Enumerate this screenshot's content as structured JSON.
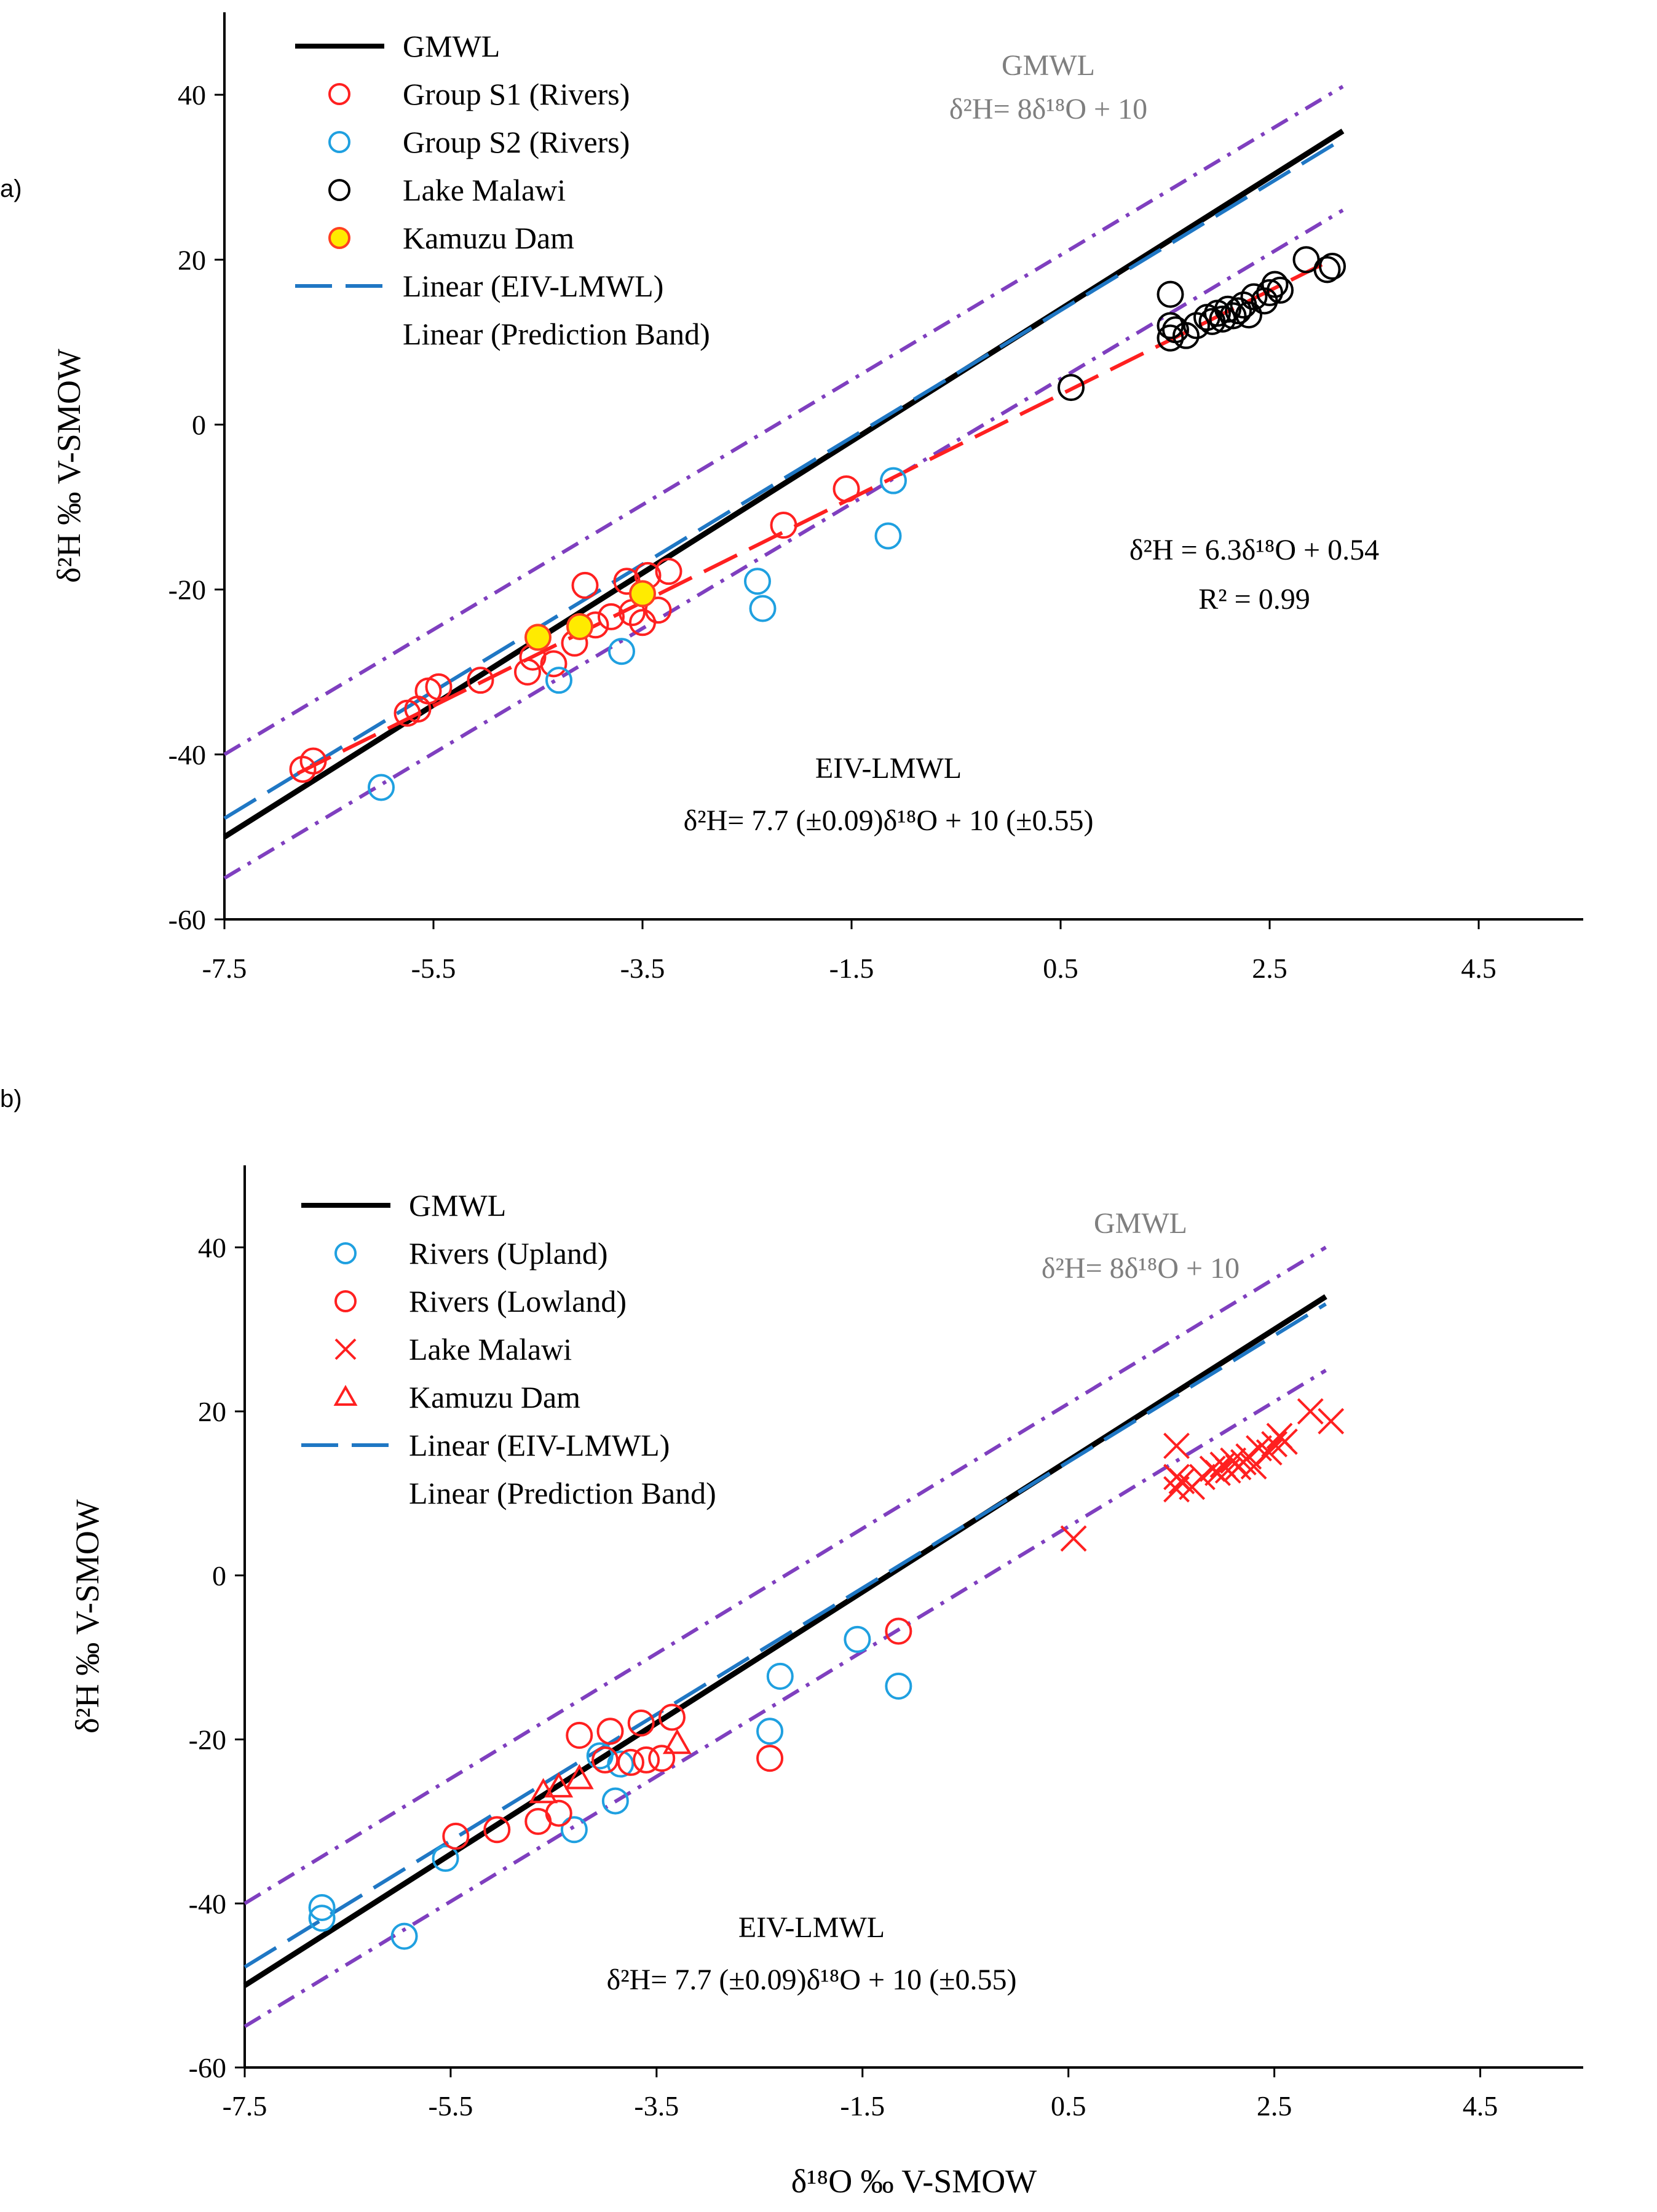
{
  "chart_data": [
    {
      "panel": "a)",
      "type": "scatter",
      "xlabel": "",
      "ylabel": "δ²H ‰ V-SMOW",
      "xlim": [
        -7.5,
        5.5
      ],
      "ylim": [
        -60,
        50
      ],
      "x_ticks": [
        "-7.5",
        "-5.5",
        "-3.5",
        "-1.5",
        "0.5",
        "2.5",
        "4.5"
      ],
      "y_ticks": [
        "-60",
        "-40",
        "-20",
        "0",
        "20",
        "40"
      ],
      "legend": [
        "GMWL",
        "Group S1 (Rivers)",
        "Group S2 (Rivers)",
        "Lake Malawi",
        "Kamuzu Dam",
        "Linear  (EIV-LMWL)",
        "Linear  (Prediction Band)"
      ],
      "annotations": {
        "gmwl_title": "GMWL",
        "gmwl_eq": "δ²H= 8δ¹⁸O + 10",
        "reg_eq": "δ²H = 6.3δ¹⁸O + 0.54",
        "reg_r2": "R² = 0.99",
        "eiv_title": "EIV-LMWL",
        "eiv_eq": "δ²H= 7.7 (±0.09)δ¹⁸O + 10 (±0.55)"
      },
      "lines": [
        {
          "name": "GMWL",
          "style": "solid",
          "color": "#000000",
          "x": [
            -7.5,
            3.2
          ],
          "y": [
            -50,
            35.6
          ]
        },
        {
          "name": "Linear  (EIV-LMWL)",
          "style": "dashed",
          "color": "#1f77c4",
          "x": [
            -7.5,
            3.2
          ],
          "y": [
            -47.75,
            34.64
          ]
        },
        {
          "name": "Linear  (Prediction Band) upper",
          "style": "dashdot",
          "color": "#7f3fbf",
          "x": [
            -7.5,
            3.2
          ],
          "y": [
            -40,
            41
          ]
        },
        {
          "name": "Linear  (Prediction Band) lower",
          "style": "dashdot",
          "color": "#7f3fbf",
          "x": [
            -7.5,
            3.2
          ],
          "y": [
            -55,
            26
          ]
        },
        {
          "name": "Evaporation line",
          "style": "dashed",
          "color": "#ff2020",
          "x": [
            -6.8,
            3.0
          ],
          "y": [
            -42.3,
            19.4
          ]
        }
      ],
      "series": [
        {
          "name": "Group S1 (Rivers)",
          "marker": "circle",
          "color": "#ff2020",
          "fill": "none",
          "points": [
            [
              -6.75,
              -41.8
            ],
            [
              -6.65,
              -40.8
            ],
            [
              -5.75,
              -35
            ],
            [
              -5.65,
              -34.5
            ],
            [
              -5.55,
              -32.3
            ],
            [
              -5.45,
              -31.8
            ],
            [
              -5.05,
              -31
            ],
            [
              -4.6,
              -30
            ],
            [
              -4.55,
              -28.2
            ],
            [
              -4.35,
              -29
            ],
            [
              -4.15,
              -26.5
            ],
            [
              -4.05,
              -19.5
            ],
            [
              -3.95,
              -24.3
            ],
            [
              -3.8,
              -23.3
            ],
            [
              -3.65,
              -19
            ],
            [
              -3.6,
              -22.8
            ],
            [
              -3.5,
              -24
            ],
            [
              -3.45,
              -18.3
            ],
            [
              -3.35,
              -22.5
            ],
            [
              -3.25,
              -17.8
            ],
            [
              -2.15,
              -12.2
            ],
            [
              -1.55,
              -7.8
            ]
          ]
        },
        {
          "name": "Group S2 (Rivers)",
          "marker": "circle",
          "color": "#1fa0e0",
          "fill": "none",
          "points": [
            [
              -6.0,
              -44
            ],
            [
              -4.3,
              -31
            ],
            [
              -3.7,
              -27.5
            ],
            [
              -2.4,
              -19
            ],
            [
              -2.35,
              -22.3
            ],
            [
              -1.15,
              -13.5
            ],
            [
              -1.1,
              -6.8
            ]
          ]
        },
        {
          "name": "Lake Malawi",
          "marker": "circle",
          "color": "#000000",
          "fill": "none",
          "points": [
            [
              0.6,
              4.5
            ],
            [
              1.55,
              15.8
            ],
            [
              1.55,
              12
            ],
            [
              1.55,
              10.5
            ],
            [
              1.6,
              11.5
            ],
            [
              1.7,
              10.8
            ],
            [
              1.8,
              12
            ],
            [
              1.9,
              13
            ],
            [
              1.95,
              12.5
            ],
            [
              2.0,
              13.5
            ],
            [
              2.05,
              12.8
            ],
            [
              2.1,
              14
            ],
            [
              2.15,
              13.2
            ],
            [
              2.2,
              13.8
            ],
            [
              2.25,
              14.5
            ],
            [
              2.3,
              13.3
            ],
            [
              2.35,
              15.5
            ],
            [
              2.45,
              15
            ],
            [
              2.5,
              16
            ],
            [
              2.55,
              17
            ],
            [
              2.6,
              16.3
            ],
            [
              2.85,
              20
            ],
            [
              3.05,
              18.8
            ],
            [
              3.1,
              19.2
            ]
          ]
        },
        {
          "name": "Kamuzu Dam",
          "marker": "circle",
          "color": "#ff4020",
          "fill": "#ffeb00",
          "points": [
            [
              -4.5,
              -25.8
            ],
            [
              -4.1,
              -24.5
            ],
            [
              -3.5,
              -20.5
            ]
          ]
        }
      ]
    },
    {
      "panel": "b)",
      "type": "scatter",
      "xlabel": "δ¹⁸O ‰ V-SMOW",
      "ylabel": "δ²H ‰ V-SMOW",
      "xlim": [
        -7.5,
        5.5
      ],
      "ylim": [
        -60,
        50
      ],
      "x_ticks": [
        "-7.5",
        "-5.5",
        "-3.5",
        "-1.5",
        "0.5",
        "2.5",
        "4.5"
      ],
      "y_ticks": [
        "-60",
        "-40",
        "-20",
        "0",
        "20",
        "40"
      ],
      "legend": [
        "GMWL",
        "Rivers (Upland)",
        "Rivers (Lowland)",
        "Lake Malawi",
        "Kamuzu Dam",
        "Linear  (EIV-LMWL)",
        "Linear  (Prediction Band)"
      ],
      "annotations": {
        "gmwl_title": "GMWL",
        "gmwl_eq": "δ²H= 8δ¹⁸O + 10",
        "eiv_title": "EIV-LMWL",
        "eiv_eq": "δ²H= 7.7 (±0.09)δ¹⁸O + 10 (±0.55)"
      },
      "lines": [
        {
          "name": "GMWL",
          "style": "solid",
          "color": "#000000",
          "x": [
            -7.5,
            3.0
          ],
          "y": [
            -50,
            34
          ]
        },
        {
          "name": "Linear  (EIV-LMWL)",
          "style": "dashed",
          "color": "#1f77c4",
          "x": [
            -7.5,
            3.0
          ],
          "y": [
            -47.75,
            33.1
          ]
        },
        {
          "name": "Linear  (Prediction Band) upper",
          "style": "dashdot",
          "color": "#7f3fbf",
          "x": [
            -7.5,
            3.0
          ],
          "y": [
            -40,
            40
          ]
        },
        {
          "name": "Linear  (Prediction Band) lower",
          "style": "dashdot",
          "color": "#7f3fbf",
          "x": [
            -7.5,
            3.0
          ],
          "y": [
            -55,
            25
          ]
        }
      ],
      "series": [
        {
          "name": "Rivers (Upland)",
          "marker": "circle",
          "color": "#1fa0e0",
          "fill": "none",
          "points": [
            [
              -6.75,
              -40.5
            ],
            [
              -6.75,
              -41.8
            ],
            [
              -5.95,
              -44
            ],
            [
              -5.55,
              -34.5
            ],
            [
              -4.3,
              -31
            ],
            [
              -4.05,
              -22
            ],
            [
              -3.9,
              -27.5
            ],
            [
              -3.85,
              -23
            ],
            [
              -2.4,
              -19
            ],
            [
              -2.3,
              -12.3
            ],
            [
              -1.55,
              -7.8
            ],
            [
              -1.15,
              -13.5
            ]
          ]
        },
        {
          "name": "Rivers (Lowland)",
          "marker": "circle",
          "color": "#ff2020",
          "fill": "none",
          "points": [
            [
              -5.45,
              -31.8
            ],
            [
              -5.05,
              -31
            ],
            [
              -4.65,
              -30
            ],
            [
              -4.45,
              -29
            ],
            [
              -4.25,
              -19.5
            ],
            [
              -4.0,
              -22.5
            ],
            [
              -3.95,
              -19
            ],
            [
              -3.75,
              -22.8
            ],
            [
              -3.65,
              -18
            ],
            [
              -3.6,
              -22.5
            ],
            [
              -3.45,
              -22.3
            ],
            [
              -3.35,
              -17.3
            ],
            [
              -2.4,
              -22.3
            ],
            [
              -1.15,
              -6.8
            ]
          ]
        },
        {
          "name": "Lake Malawi",
          "marker": "x",
          "color": "#ff2020",
          "fill": "none",
          "points": [
            [
              0.55,
              4.5
            ],
            [
              1.55,
              15.8
            ],
            [
              1.55,
              12
            ],
            [
              1.55,
              10.5
            ],
            [
              1.6,
              11.5
            ],
            [
              1.7,
              10.8
            ],
            [
              1.8,
              12
            ],
            [
              1.9,
              13
            ],
            [
              1.95,
              12.5
            ],
            [
              2.0,
              13.5
            ],
            [
              2.05,
              12.8
            ],
            [
              2.1,
              14
            ],
            [
              2.15,
              13.2
            ],
            [
              2.2,
              13.8
            ],
            [
              2.25,
              14.5
            ],
            [
              2.3,
              13.3
            ],
            [
              2.35,
              15.5
            ],
            [
              2.45,
              15
            ],
            [
              2.5,
              16
            ],
            [
              2.55,
              17
            ],
            [
              2.6,
              16.3
            ],
            [
              2.85,
              20
            ],
            [
              3.05,
              18.8
            ]
          ]
        },
        {
          "name": "Kamuzu Dam",
          "marker": "triangle",
          "color": "#ff2020",
          "fill": "none",
          "points": [
            [
              -4.6,
              -26.5
            ],
            [
              -4.45,
              -25.8
            ],
            [
              -4.25,
              -24.8
            ],
            [
              -3.3,
              -20.5
            ]
          ]
        }
      ]
    }
  ]
}
